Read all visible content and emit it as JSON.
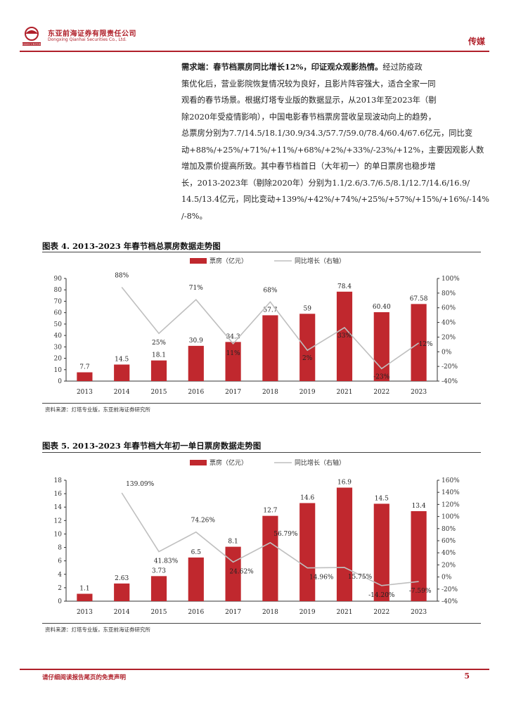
{
  "header": {
    "company_cn": "东亚前海证券有限责任公司",
    "company_en": "Dongxing Qianhai Securities Co., Ltd.",
    "logo_text": "DXSECURITIES",
    "sector": "传媒"
  },
  "paragraph": {
    "lead": "需求端：春节档票房同比增长12%，印证观众观影热情。",
    "lines": [
      "经过防疫政",
      "策优化后，营业影院恢复情况较为良好，且影片阵容强大，适合全家一同",
      "观看的春节场景。根据灯塔专业版的数据显示，从2013年至2023年（剔",
      "除2020年受疫情影响），中国电影春节档票房营收呈现波动向上的趋势，",
      "总票房分别为7.7/14.5/18.1/30.9/34.3/57.7/59.0/78.4/60.4/67.6亿元，同比变",
      "动+88%/+25%/+71%/+11%/+68%/+2%/+33%/-23%/+12%，主要因观影人数",
      "增加及票价提高所致。其中春节档首日（大年初一）的单日票房也稳步增",
      "长，2013-2023年（剔除2020年）分别为1.1/2.6/3.7/6.5/8.1/12.7/14.6/16.9/",
      "14.5/13.4亿元，同比变动+139%/+42%/+74%/+25%/+57%/+15%/+16%/-14%",
      "/-8%。"
    ]
  },
  "figures": [
    {
      "title": "图表 4.   2013-2023 年春节档总票房数据走势图",
      "source": "资料来源：灯塔专业版，东亚前海证券研究所"
    },
    {
      "title": "图表 5.   2013-2023 年春节档大年初一单日票房数据走势图",
      "source": "资料来源：灯塔专业版，东亚前海证券研究所"
    }
  ],
  "chart_data": [
    {
      "type": "bar",
      "title": "2013-2023年春节档总票房数据走势图",
      "categories": [
        "2013",
        "2014",
        "2015",
        "2016",
        "2017",
        "2018",
        "2019",
        "2021",
        "2022",
        "2023"
      ],
      "series": [
        {
          "name": "票房（亿元）",
          "type": "bar",
          "axis": "left",
          "values": [
            7.7,
            14.5,
            18.1,
            30.9,
            34.3,
            57.7,
            59,
            78.4,
            60.4,
            67.58
          ],
          "labels": [
            "7.7",
            "14.5",
            "18.1",
            "30.9",
            "34.3",
            "57.7",
            "59",
            "78.4",
            "60.40",
            "67.58"
          ]
        },
        {
          "name": "同比增长（右轴）",
          "type": "line",
          "axis": "right",
          "values": [
            null,
            88,
            25,
            71,
            11,
            68,
            2,
            33,
            -23,
            12
          ],
          "labels": [
            "",
            "88%",
            "25%",
            "71%",
            "11%",
            "68%",
            "2%",
            "33%",
            "-23%",
            "12%"
          ]
        }
      ],
      "ylim": [
        0,
        90
      ],
      "yticks": [
        0,
        10,
        20,
        30,
        40,
        50,
        60,
        70,
        80,
        90
      ],
      "y2lim": [
        -40,
        100
      ],
      "y2ticks": [
        -40,
        -20,
        0,
        20,
        40,
        60,
        80,
        100
      ],
      "y2tick_labels": [
        "-40%",
        "-20%",
        "0%",
        "20%",
        "40%",
        "60%",
        "80%",
        "100%"
      ],
      "legend": "top"
    },
    {
      "type": "bar",
      "title": "2013-2023年春节档大年初一单日票房数据走势图",
      "categories": [
        "2013",
        "2014",
        "2015",
        "2016",
        "2017",
        "2018",
        "2019",
        "2021",
        "2022",
        "2023"
      ],
      "series": [
        {
          "name": "票房（亿元）",
          "type": "bar",
          "axis": "left",
          "values": [
            1.1,
            2.63,
            3.73,
            6.5,
            8.1,
            12.7,
            14.6,
            16.9,
            14.5,
            13.4
          ],
          "labels": [
            "1.1",
            "2.63",
            "3.73",
            "6.5",
            "8.1",
            "12.7",
            "14.6",
            "16.9",
            "14.5",
            "13.4"
          ]
        },
        {
          "name": "同比增长（右轴）",
          "type": "line",
          "axis": "right",
          "values": [
            null,
            139.09,
            41.83,
            74.26,
            24.62,
            56.79,
            14.96,
            15.75,
            -14.2,
            -7.59
          ],
          "labels": [
            "",
            "139.09%",
            "41.83%",
            "74.26%",
            "24.62%",
            "56.79%",
            "14.96%",
            "15.75%",
            "-14.20%",
            "-7.59%"
          ]
        }
      ],
      "ylim": [
        0,
        18
      ],
      "yticks": [
        0,
        2,
        4,
        6,
        8,
        10,
        12,
        14,
        16,
        18
      ],
      "y2lim": [
        -40,
        160
      ],
      "y2ticks": [
        -40,
        -20,
        0,
        20,
        40,
        60,
        80,
        100,
        120,
        140,
        160
      ],
      "y2tick_labels": [
        "-40%",
        "-20%",
        "0%",
        "20%",
        "40%",
        "60%",
        "80%",
        "100%",
        "120%",
        "140%",
        "160%"
      ],
      "legend": "top"
    }
  ],
  "footer": {
    "disclaimer": "请仔细阅读报告尾页的免责声明",
    "page": "5"
  },
  "colors": {
    "brand": "#b0202a",
    "bar": "#c0282e",
    "line": "#bfbfbf"
  }
}
